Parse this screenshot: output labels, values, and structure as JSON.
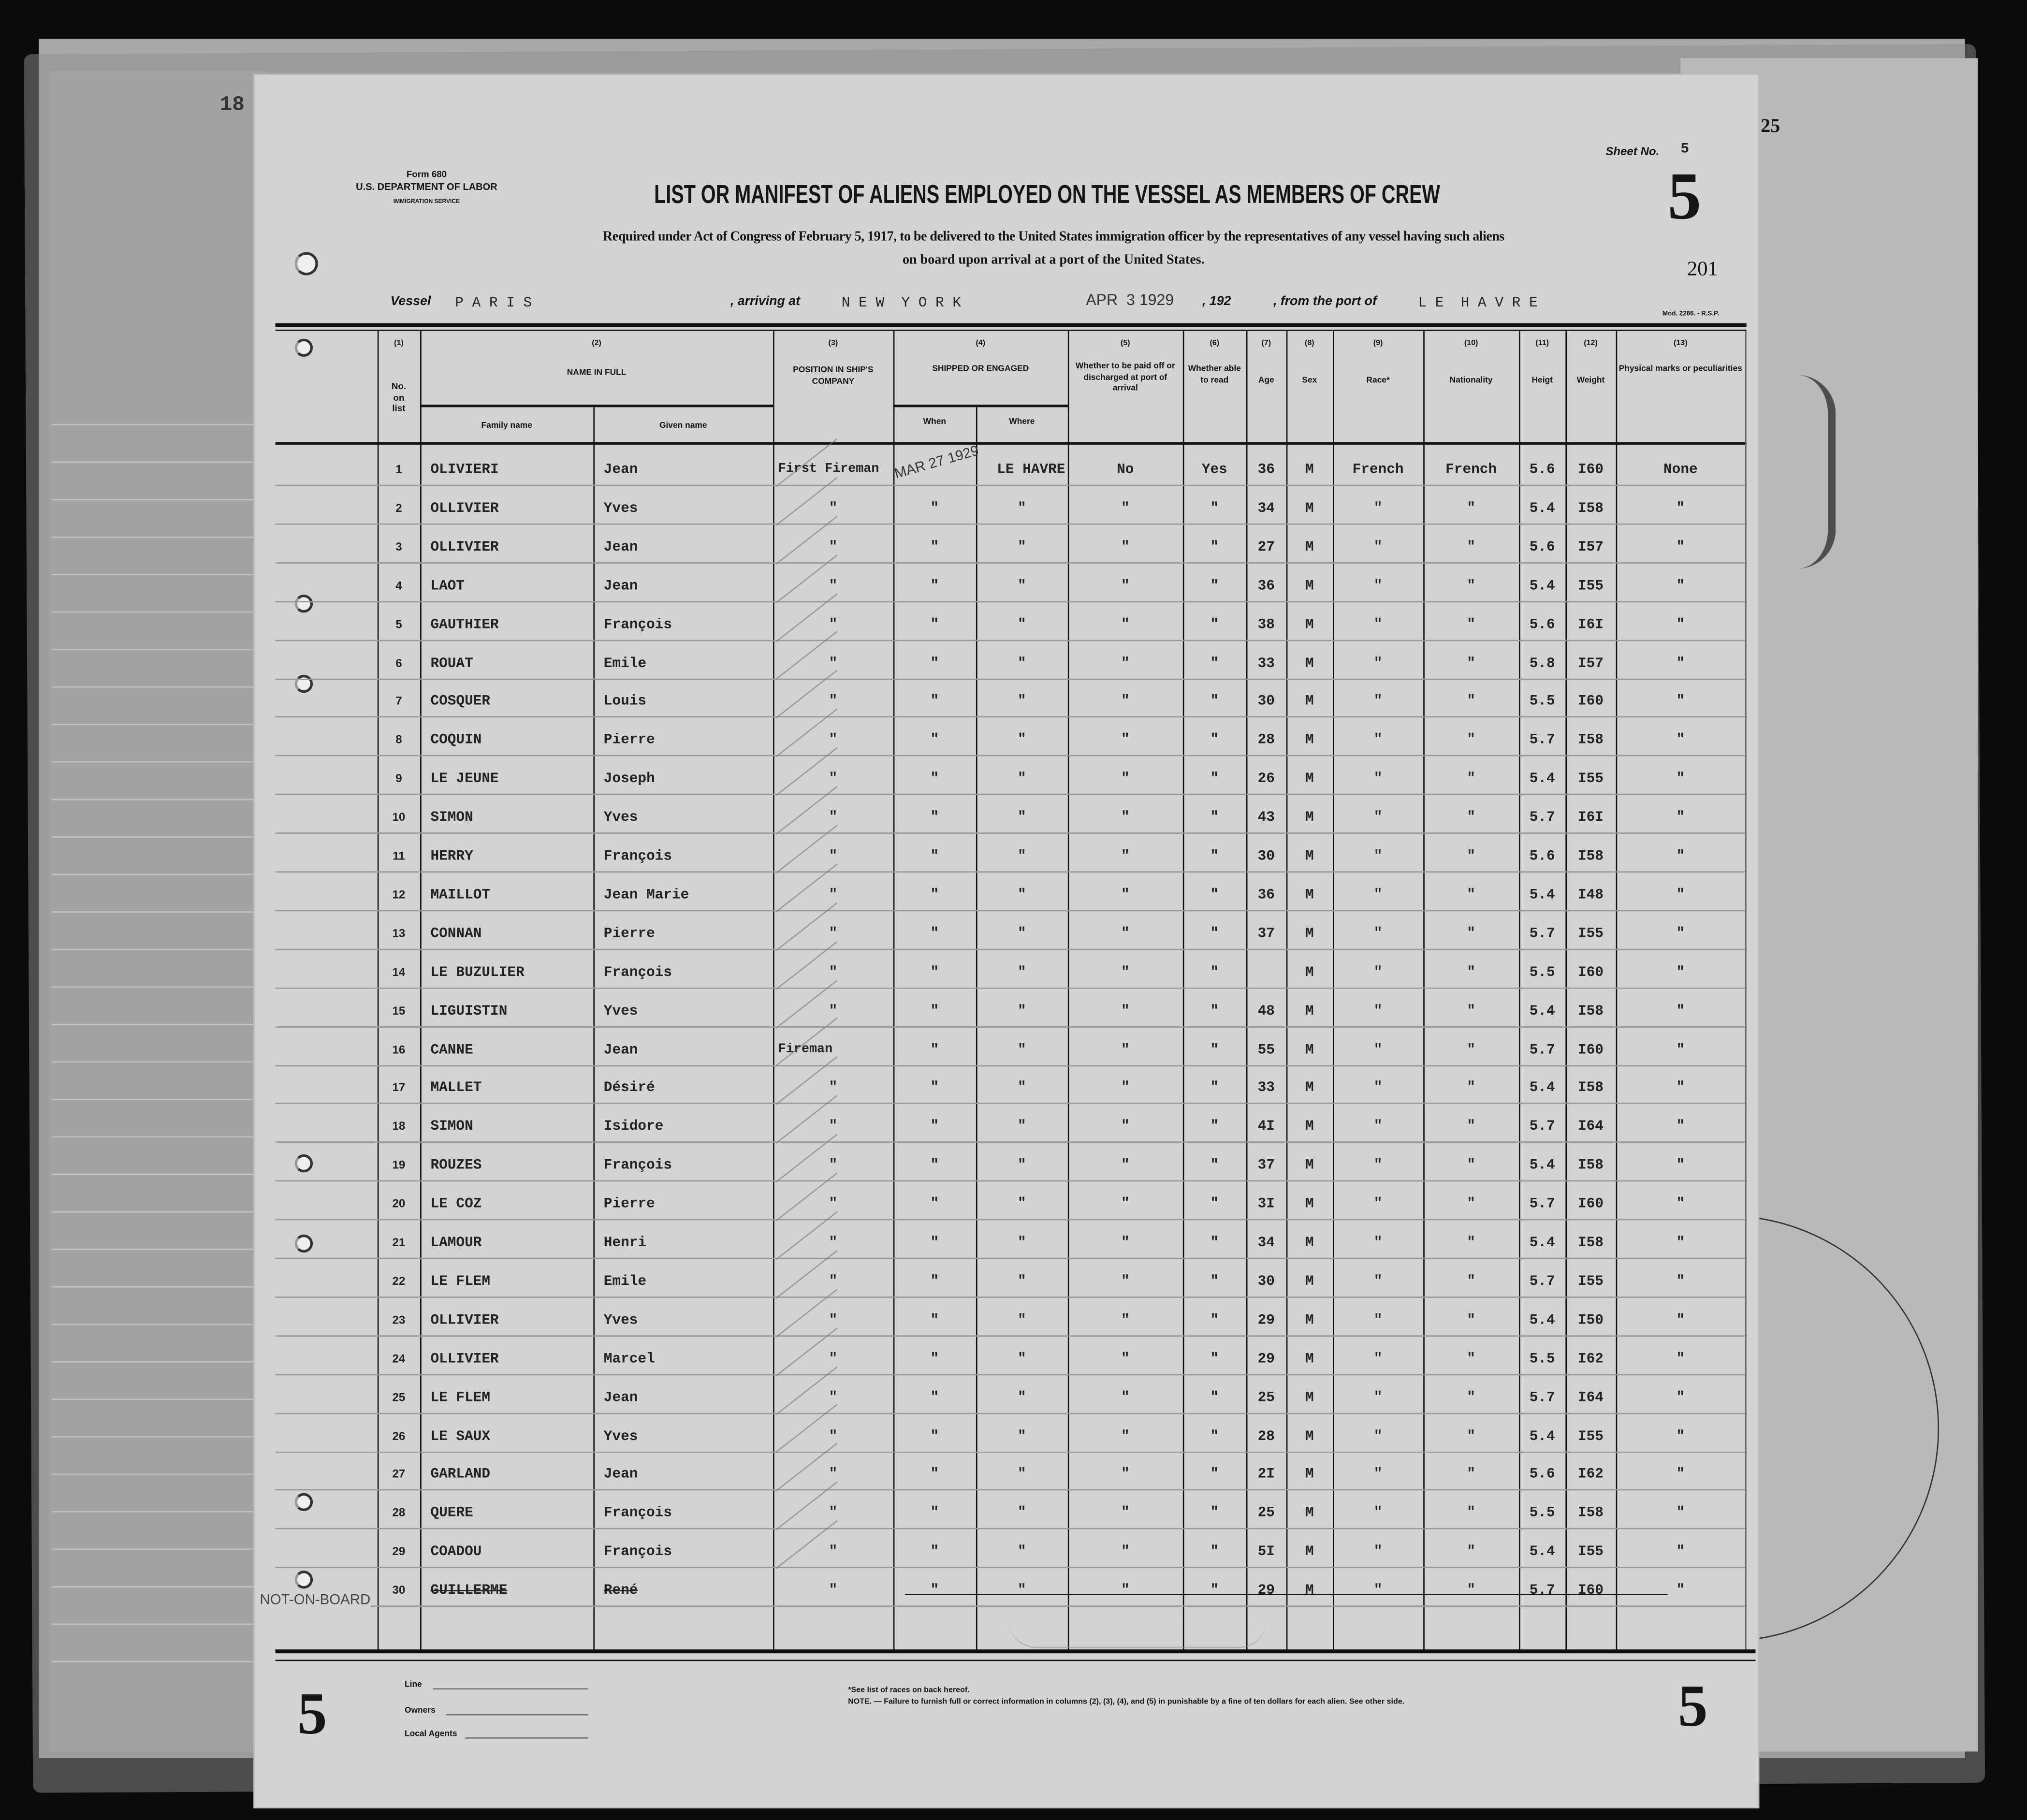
{
  "under_sheet": {
    "left_number": "18",
    "right_number": "25"
  },
  "form": {
    "form_no": "Form 680",
    "department": "U.S. DEPARTMENT OF LABOR",
    "service": "IMMIGRATION SERVICE",
    "sheet_label": "Sheet No.",
    "sheet_no": "5",
    "big_sheet_no": "5",
    "title": "LIST OR MANIFEST OF ALIENS EMPLOYED ON THE VESSEL AS MEMBERS OF CREW",
    "subtitle_1": "Required under Act of Congress of February 5, 1917, to be delivered to the United States immigration officer by the representatives of any vessel having such aliens",
    "subtitle_2": "on board upon arrival at a port of the United States.",
    "page_no": "201",
    "vessel_label": "Vessel",
    "vessel": "P A R I S",
    "arriving_label": ", arriving at",
    "arriving": "N E W  Y O R K",
    "date_stamp": "APR  3 1929",
    "year_label": ", 192",
    "from_label": ", from the port of",
    "from_port": "L E  H A V R E",
    "mod": "Mod. 2286. - R.S.P."
  },
  "columns": {
    "c1": "(1)",
    "c2": "(2)",
    "c3": "(3)",
    "c4": "(4)",
    "c5": "(5)",
    "c6": "(6)",
    "c7": "(7)",
    "c8": "(8)",
    "c9": "(9)",
    "c10": "(10)",
    "c11": "(11)",
    "c12": "(12)",
    "c13": "(13)",
    "no_on_list": "No. on list",
    "name_in_full": "NAME IN FULL",
    "family_name": "Family name",
    "given_name": "Given name",
    "position": "POSITION IN SHIP'S COMPANY",
    "shipped": "SHIPPED OR ENGAGED",
    "when": "When",
    "where": "Where",
    "paid_off": "Whether to be paid off or discharged at port of arrival",
    "able_read": "Whether able to read",
    "age": "Age",
    "sex": "Sex",
    "race": "Race*",
    "nationality": "Nationality",
    "height": "Heigt",
    "weight": "Weight",
    "marks": "Physical marks or peculiarities"
  },
  "engaged_stamp": "MAR 27 1929",
  "not_on_board_stamp": "NOT-ON-BOARD",
  "rows": [
    {
      "no": "1",
      "family": "OLIVIERI",
      "given": "Jean",
      "position": "First Fireman",
      "when": "",
      "where": "LE HAVRE",
      "paid": "No",
      "read": "Yes",
      "age": "36",
      "sex": "M",
      "race": "French",
      "nat": "French",
      "height": "5.6",
      "weight": "I60",
      "marks": "None"
    },
    {
      "no": "2",
      "family": "OLLIVIER",
      "given": "Yves",
      "position": "\"",
      "when": "\"",
      "where": "\"",
      "paid": "\"",
      "read": "\"",
      "age": "34",
      "sex": "M",
      "race": "\"",
      "nat": "\"",
      "height": "5.4",
      "weight": "I58",
      "marks": "\""
    },
    {
      "no": "3",
      "family": "OLLIVIER",
      "given": "Jean",
      "position": "\"",
      "when": "\"",
      "where": "\"",
      "paid": "\"",
      "read": "\"",
      "age": "27",
      "sex": "M",
      "race": "\"",
      "nat": "\"",
      "height": "5.6",
      "weight": "I57",
      "marks": "\""
    },
    {
      "no": "4",
      "family": "LAOT",
      "given": "Jean",
      "position": "\"",
      "when": "\"",
      "where": "\"",
      "paid": "\"",
      "read": "\"",
      "age": "36",
      "sex": "M",
      "race": "\"",
      "nat": "\"",
      "height": "5.4",
      "weight": "I55",
      "marks": "\""
    },
    {
      "no": "5",
      "family": "GAUTHIER",
      "given": "François",
      "position": "\"",
      "when": "\"",
      "where": "\"",
      "paid": "\"",
      "read": "\"",
      "age": "38",
      "sex": "M",
      "race": "\"",
      "nat": "\"",
      "height": "5.6",
      "weight": "I6I",
      "marks": "\""
    },
    {
      "no": "6",
      "family": "ROUAT",
      "given": "Emile",
      "position": "\"",
      "when": "\"",
      "where": "\"",
      "paid": "\"",
      "read": "\"",
      "age": "33",
      "sex": "M",
      "race": "\"",
      "nat": "\"",
      "height": "5.8",
      "weight": "I57",
      "marks": "\""
    },
    {
      "no": "7",
      "family": "COSQUER",
      "given": "Louis",
      "position": "\"",
      "when": "\"",
      "where": "\"",
      "paid": "\"",
      "read": "\"",
      "age": "30",
      "sex": "M",
      "race": "\"",
      "nat": "\"",
      "height": "5.5",
      "weight": "I60",
      "marks": "\""
    },
    {
      "no": "8",
      "family": "COQUIN",
      "given": "Pierre",
      "position": "\"",
      "when": "\"",
      "where": "\"",
      "paid": "\"",
      "read": "\"",
      "age": "28",
      "sex": "M",
      "race": "\"",
      "nat": "\"",
      "height": "5.7",
      "weight": "I58",
      "marks": "\""
    },
    {
      "no": "9",
      "family": "LE JEUNE",
      "given": "Joseph",
      "position": "\"",
      "when": "\"",
      "where": "\"",
      "paid": "\"",
      "read": "\"",
      "age": "26",
      "sex": "M",
      "race": "\"",
      "nat": "\"",
      "height": "5.4",
      "weight": "I55",
      "marks": "\""
    },
    {
      "no": "10",
      "family": "SIMON",
      "given": "Yves",
      "position": "\"",
      "when": "\"",
      "where": "\"",
      "paid": "\"",
      "read": "\"",
      "age": "43",
      "sex": "M",
      "race": "\"",
      "nat": "\"",
      "height": "5.7",
      "weight": "I6I",
      "marks": "\""
    },
    {
      "no": "11",
      "family": "HERRY",
      "given": "François",
      "position": "\"",
      "when": "\"",
      "where": "\"",
      "paid": "\"",
      "read": "\"",
      "age": "30",
      "sex": "M",
      "race": "\"",
      "nat": "\"",
      "height": "5.6",
      "weight": "I58",
      "marks": "\""
    },
    {
      "no": "12",
      "family": "MAILLOT",
      "given": "Jean Marie",
      "position": "\"",
      "when": "\"",
      "where": "\"",
      "paid": "\"",
      "read": "\"",
      "age": "36",
      "sex": "M",
      "race": "\"",
      "nat": "\"",
      "height": "5.4",
      "weight": "I48",
      "marks": "\""
    },
    {
      "no": "13",
      "family": "CONNAN",
      "given": "Pierre",
      "position": "\"",
      "when": "\"",
      "where": "\"",
      "paid": "\"",
      "read": "\"",
      "age": "37",
      "sex": "M",
      "race": "\"",
      "nat": "\"",
      "height": "5.7",
      "weight": "I55",
      "marks": "\""
    },
    {
      "no": "14",
      "family": "LE BUZULIER",
      "given": "François",
      "position": "\"",
      "when": "\"",
      "where": "\"",
      "paid": "\"",
      "read": "\"",
      "age": "",
      "sex": "M",
      "race": "\"",
      "nat": "\"",
      "height": "5.5",
      "weight": "I60",
      "marks": "\""
    },
    {
      "no": "15",
      "family": "LIGUISTIN",
      "given": "Yves",
      "position": "\"",
      "when": "\"",
      "where": "\"",
      "paid": "\"",
      "read": "\"",
      "age": "48",
      "sex": "M",
      "race": "\"",
      "nat": "\"",
      "height": "5.4",
      "weight": "I58",
      "marks": "\""
    },
    {
      "no": "16",
      "family": "CANNE",
      "given": "Jean",
      "position": "Fireman",
      "when": "\"",
      "where": "\"",
      "paid": "\"",
      "read": "\"",
      "age": "55",
      "sex": "M",
      "race": "\"",
      "nat": "\"",
      "height": "5.7",
      "weight": "I60",
      "marks": "\""
    },
    {
      "no": "17",
      "family": "MALLET",
      "given": "Désiré",
      "position": "\"",
      "when": "\"",
      "where": "\"",
      "paid": "\"",
      "read": "\"",
      "age": "33",
      "sex": "M",
      "race": "\"",
      "nat": "\"",
      "height": "5.4",
      "weight": "I58",
      "marks": "\""
    },
    {
      "no": "18",
      "family": "SIMON",
      "given": "Isidore",
      "position": "\"",
      "when": "\"",
      "where": "\"",
      "paid": "\"",
      "read": "\"",
      "age": "4I",
      "sex": "M",
      "race": "\"",
      "nat": "\"",
      "height": "5.7",
      "weight": "I64",
      "marks": "\""
    },
    {
      "no": "19",
      "family": "ROUZES",
      "given": "François",
      "position": "\"",
      "when": "\"",
      "where": "\"",
      "paid": "\"",
      "read": "\"",
      "age": "37",
      "sex": "M",
      "race": "\"",
      "nat": "\"",
      "height": "5.4",
      "weight": "I58",
      "marks": "\""
    },
    {
      "no": "20",
      "family": "LE COZ",
      "given": "Pierre",
      "position": "\"",
      "when": "\"",
      "where": "\"",
      "paid": "\"",
      "read": "\"",
      "age": "3I",
      "sex": "M",
      "race": "\"",
      "nat": "\"",
      "height": "5.7",
      "weight": "I60",
      "marks": "\""
    },
    {
      "no": "21",
      "family": "LAMOUR",
      "given": "Henri",
      "position": "\"",
      "when": "\"",
      "where": "\"",
      "paid": "\"",
      "read": "\"",
      "age": "34",
      "sex": "M",
      "race": "\"",
      "nat": "\"",
      "height": "5.4",
      "weight": "I58",
      "marks": "\""
    },
    {
      "no": "22",
      "family": "LE FLEM",
      "given": "Emile",
      "position": "\"",
      "when": "\"",
      "where": "\"",
      "paid": "\"",
      "read": "\"",
      "age": "30",
      "sex": "M",
      "race": "\"",
      "nat": "\"",
      "height": "5.7",
      "weight": "I55",
      "marks": "\""
    },
    {
      "no": "23",
      "family": "OLLIVIER",
      "given": "Yves",
      "position": "\"",
      "when": "\"",
      "where": "\"",
      "paid": "\"",
      "read": "\"",
      "age": "29",
      "sex": "M",
      "race": "\"",
      "nat": "\"",
      "height": "5.4",
      "weight": "I50",
      "marks": "\""
    },
    {
      "no": "24",
      "family": "OLLIVIER",
      "given": "Marcel",
      "position": "\"",
      "when": "\"",
      "where": "\"",
      "paid": "\"",
      "read": "\"",
      "age": "29",
      "sex": "M",
      "race": "\"",
      "nat": "\"",
      "height": "5.5",
      "weight": "I62",
      "marks": "\""
    },
    {
      "no": "25",
      "family": "LE FLEM",
      "given": "Jean",
      "position": "\"",
      "when": "\"",
      "where": "\"",
      "paid": "\"",
      "read": "\"",
      "age": "25",
      "sex": "M",
      "race": "\"",
      "nat": "\"",
      "height": "5.7",
      "weight": "I64",
      "marks": "\""
    },
    {
      "no": "26",
      "family": "LE SAUX",
      "given": "Yves",
      "position": "\"",
      "when": "\"",
      "where": "\"",
      "paid": "\"",
      "read": "\"",
      "age": "28",
      "sex": "M",
      "race": "\"",
      "nat": "\"",
      "height": "5.4",
      "weight": "I55",
      "marks": "\""
    },
    {
      "no": "27",
      "family": "GARLAND",
      "given": "Jean",
      "position": "\"",
      "when": "\"",
      "where": "\"",
      "paid": "\"",
      "read": "\"",
      "age": "2I",
      "sex": "M",
      "race": "\"",
      "nat": "\"",
      "height": "5.6",
      "weight": "I62",
      "marks": "\""
    },
    {
      "no": "28",
      "family": "QUERE",
      "given": "François",
      "position": "\"",
      "when": "\"",
      "where": "\"",
      "paid": "\"",
      "read": "\"",
      "age": "25",
      "sex": "M",
      "race": "\"",
      "nat": "\"",
      "height": "5.5",
      "weight": "I58",
      "marks": "\""
    },
    {
      "no": "29",
      "family": "COADOU",
      "given": "François",
      "position": "\"",
      "when": "\"",
      "where": "\"",
      "paid": "\"",
      "read": "\"",
      "age": "5I",
      "sex": "M",
      "race": "\"",
      "nat": "\"",
      "height": "5.4",
      "weight": "I55",
      "marks": "\""
    },
    {
      "no": "30",
      "family": "GUILLERME",
      "given": "René",
      "position": "\"",
      "when": "\"",
      "where": "\"",
      "paid": "\"",
      "read": "\"",
      "age": "29",
      "sex": "M",
      "race": "\"",
      "nat": "\"",
      "height": "5.7",
      "weight": "I60",
      "marks": "\"",
      "struck": true
    }
  ],
  "footer": {
    "line_label": "Line",
    "owners_label": "Owners",
    "agents_label": "Local Agents",
    "note_races": "*See list of races on back hereof.",
    "note": "NOTE. — Failure to furnish full or correct information in columns (2), (3), (4), and (5) in punishable by a fine of ten dollars for each alien. See other side.",
    "left_sheet_no": "5",
    "right_sheet_no": "5"
  }
}
